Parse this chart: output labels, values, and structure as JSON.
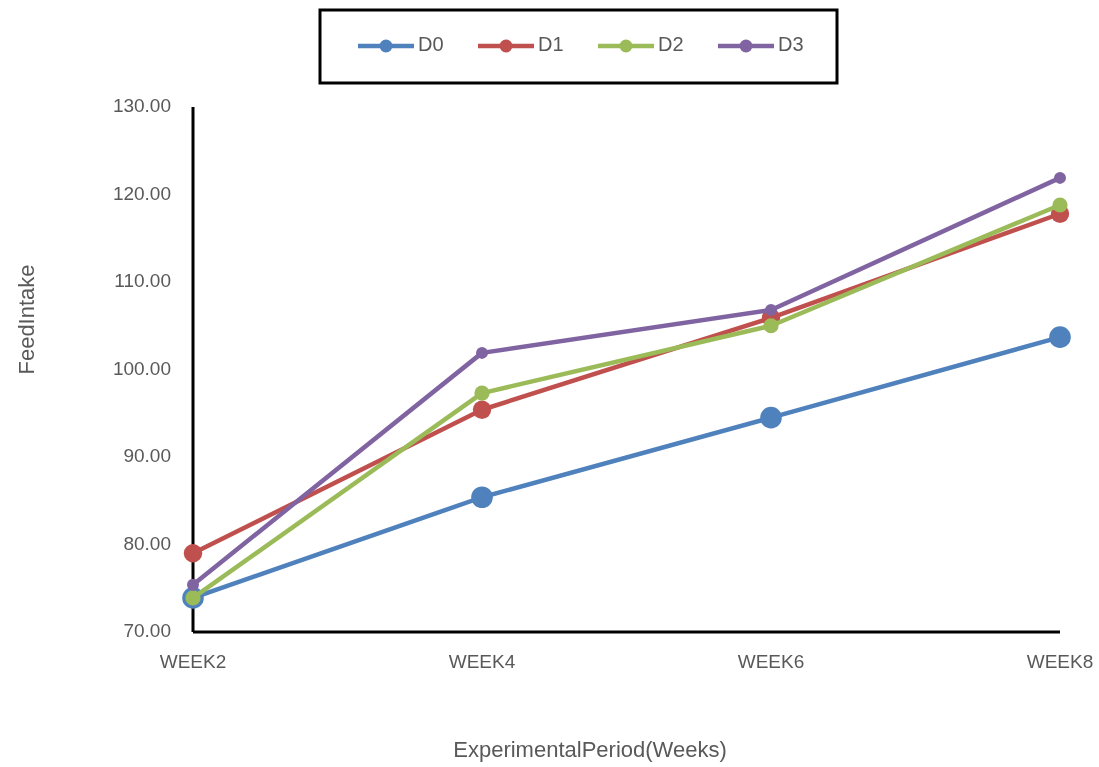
{
  "chart_data": {
    "type": "line",
    "xlabel": "ExperimentalPeriod(Weeks)",
    "ylabel": "FeedIntake",
    "categories": [
      "WEEK2",
      "WEEK4",
      "WEEK6",
      "WEEK8"
    ],
    "series": [
      {
        "name": "D0",
        "color": "#4f81bd",
        "values": [
          73.9,
          85.4,
          94.5,
          103.7
        ]
      },
      {
        "name": "D1",
        "color": "#c0504d",
        "values": [
          79.0,
          95.4,
          105.9,
          117.8
        ]
      },
      {
        "name": "D2",
        "color": "#9bbb59",
        "values": [
          73.9,
          97.3,
          105.0,
          118.8
        ]
      },
      {
        "name": "D3",
        "color": "#8064a2",
        "values": [
          75.4,
          101.9,
          106.8,
          121.9
        ]
      }
    ],
    "ylim": [
      70,
      130
    ],
    "yticks": [
      {
        "value": 70,
        "label": "70.00"
      },
      {
        "value": 80,
        "label": "80.00"
      },
      {
        "value": 90,
        "label": "90.00"
      },
      {
        "value": 100,
        "label": "100.00"
      },
      {
        "value": 110,
        "label": "110.00"
      },
      {
        "value": 120,
        "label": "120.00"
      },
      {
        "value": 130,
        "label": "130.00"
      }
    ],
    "legend": "top",
    "marker": "circle",
    "line_style": "solid",
    "grid": false
  }
}
